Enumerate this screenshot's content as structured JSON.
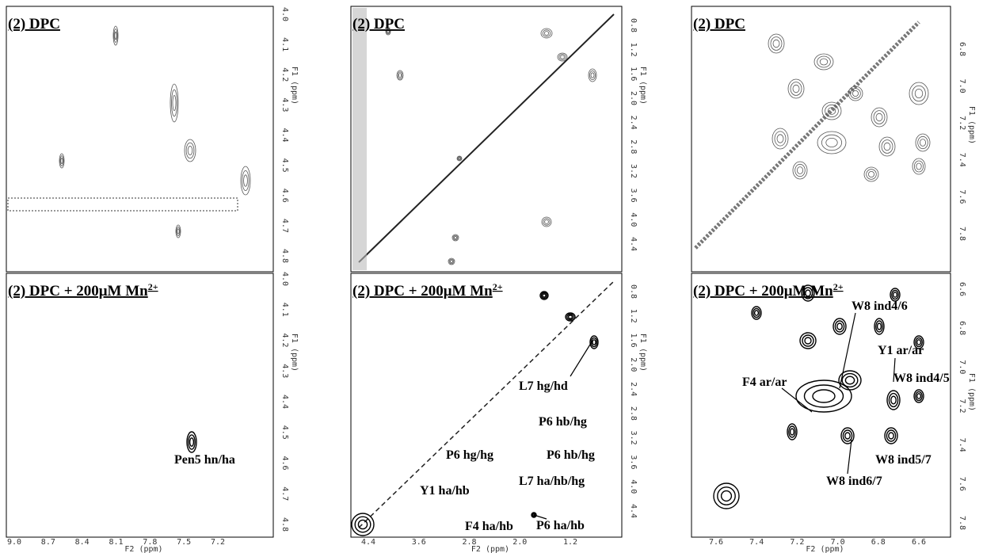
{
  "panels": [
    {
      "title": "(2) DPC",
      "y_axis": {
        "label": "F1 (ppm)",
        "ticks": [
          "4.0",
          "4.1",
          "4.2",
          "4.3",
          "4.4",
          "4.5",
          "4.6",
          "4.7",
          "4.8"
        ]
      }
    },
    {
      "title": "(2) DPC",
      "y_axis": {
        "label": "F1 (ppm)",
        "ticks": [
          "0.8",
          "1.2",
          "1.6",
          "2.0",
          "2.4",
          "2.8",
          "3.2",
          "3.6",
          "4.0",
          "4.4"
        ]
      }
    },
    {
      "title": "(2) DPC",
      "y_axis": {
        "label": "F1 (ppm)",
        "ticks": [
          "6.8",
          "7.0",
          "7.2",
          "7.4",
          "7.6",
          "7.8"
        ]
      }
    },
    {
      "title": "(2) DPC + 200μM Mn",
      "title_sup": "2+",
      "y_axis": {
        "label": "F1 (ppm)",
        "ticks": [
          "4.0",
          "4.1",
          "4.2",
          "4.3",
          "4.4",
          "4.5",
          "4.6",
          "4.7",
          "4.8"
        ]
      },
      "x_axis": {
        "label": "F2 (ppm)",
        "ticks": [
          "9.0",
          "8.7",
          "8.4",
          "8.1",
          "7.8",
          "7.5",
          "7.2"
        ]
      },
      "annotations": [
        "Pen5 hn/ha"
      ]
    },
    {
      "title": "(2) DPC + 200μM Mn",
      "title_sup": "2+",
      "y_axis": {
        "label": "F1 (ppm)",
        "ticks": [
          "0.8",
          "1.2",
          "1.6",
          "2.0",
          "2.4",
          "2.8",
          "3.2",
          "3.6",
          "4.0",
          "4.4"
        ]
      },
      "x_axis": {
        "label": "F2 (ppm)",
        "ticks": [
          "4.4",
          "3.6",
          "2.8",
          "2.0",
          "1.2"
        ]
      },
      "annotations": [
        "L7 hg/hd",
        "P6 hb/hg",
        "P6 hg/hg",
        "P6 hb/hg",
        "L7 ha/hb/hg",
        "Y1 ha/hb",
        "P6 ha/hb",
        "F4 ha/hb"
      ]
    },
    {
      "title": "(2) DPC + 200μM Mn",
      "title_sup": "2+",
      "y_axis": {
        "label": "F1 (ppm)",
        "ticks": [
          "6.6",
          "6.8",
          "7.0",
          "7.2",
          "7.4",
          "7.6",
          "7.8"
        ]
      },
      "x_axis": {
        "label": "F2 (ppm)",
        "ticks": [
          "7.6",
          "7.4",
          "7.2",
          "7.0",
          "6.8",
          "6.6"
        ]
      },
      "annotations": [
        "W8 ind4/6",
        "Y1 ar/ar",
        "F4 ar/ar",
        "W8 ind4/5",
        "W8 ind5/7",
        "W8 ind6/7"
      ]
    }
  ]
}
